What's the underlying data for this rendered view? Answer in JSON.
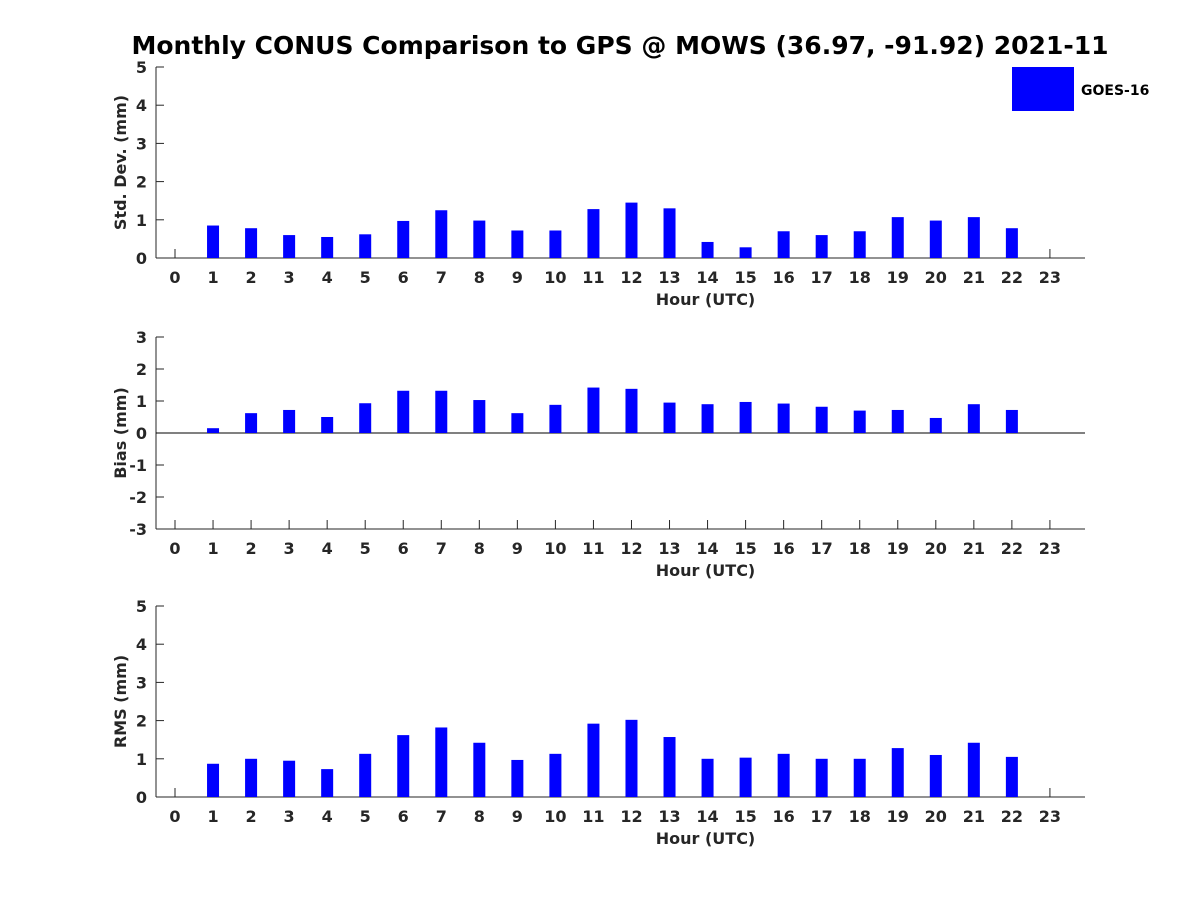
{
  "title": "Monthly CONUS Comparison to GPS @ MOWS (36.97, -91.92) 2021-11",
  "legend": {
    "label": "GOES-16",
    "color": "#0000ff",
    "placement": "top-right"
  },
  "chart_data": [
    {
      "type": "bar",
      "name": "std-dev",
      "xlabel": "Hour (UTC)",
      "ylabel": "Std. Dev. (mm)",
      "ylim": [
        0,
        5
      ],
      "yticks": [
        "0",
        "1",
        "2",
        "3",
        "4",
        "5"
      ],
      "categories": [
        "0",
        "1",
        "2",
        "3",
        "4",
        "5",
        "6",
        "7",
        "8",
        "9",
        "10",
        "11",
        "12",
        "13",
        "14",
        "15",
        "16",
        "17",
        "18",
        "19",
        "20",
        "21",
        "22",
        "23"
      ],
      "series": [
        {
          "name": "GOES-16",
          "color": "#0000ff",
          "values": [
            null,
            0.85,
            0.78,
            0.6,
            0.55,
            0.62,
            0.97,
            1.25,
            0.98,
            0.72,
            0.72,
            1.28,
            1.45,
            1.3,
            0.42,
            0.28,
            0.7,
            0.6,
            0.7,
            1.07,
            0.98,
            1.07,
            0.78,
            null
          ]
        }
      ]
    },
    {
      "type": "bar",
      "name": "bias",
      "xlabel": "Hour (UTC)",
      "ylabel": "Bias (mm)",
      "ylim": [
        -3,
        3
      ],
      "yticks": [
        "-3",
        "-2",
        "-1",
        "0",
        "1",
        "2",
        "3"
      ],
      "zero_line": true,
      "categories": [
        "0",
        "1",
        "2",
        "3",
        "4",
        "5",
        "6",
        "7",
        "8",
        "9",
        "10",
        "11",
        "12",
        "13",
        "14",
        "15",
        "16",
        "17",
        "18",
        "19",
        "20",
        "21",
        "22",
        "23"
      ],
      "series": [
        {
          "name": "GOES-16",
          "color": "#0000ff",
          "values": [
            null,
            0.15,
            0.62,
            0.72,
            0.5,
            0.93,
            1.32,
            1.32,
            1.03,
            0.62,
            0.88,
            1.42,
            1.38,
            0.95,
            0.9,
            0.97,
            0.92,
            0.82,
            0.7,
            0.72,
            0.47,
            0.9,
            0.72,
            null
          ]
        }
      ]
    },
    {
      "type": "bar",
      "name": "rms",
      "xlabel": "Hour (UTC)",
      "ylabel": "RMS (mm)",
      "ylim": [
        0,
        5
      ],
      "yticks": [
        "0",
        "1",
        "2",
        "3",
        "4",
        "5"
      ],
      "categories": [
        "0",
        "1",
        "2",
        "3",
        "4",
        "5",
        "6",
        "7",
        "8",
        "9",
        "10",
        "11",
        "12",
        "13",
        "14",
        "15",
        "16",
        "17",
        "18",
        "19",
        "20",
        "21",
        "22",
        "23"
      ],
      "series": [
        {
          "name": "GOES-16",
          "color": "#0000ff",
          "values": [
            null,
            0.87,
            1.0,
            0.95,
            0.73,
            1.13,
            1.62,
            1.82,
            1.42,
            0.97,
            1.13,
            1.92,
            2.02,
            1.57,
            1.0,
            1.03,
            1.13,
            1.0,
            1.0,
            1.28,
            1.1,
            1.42,
            1.05,
            null
          ]
        }
      ]
    }
  ]
}
